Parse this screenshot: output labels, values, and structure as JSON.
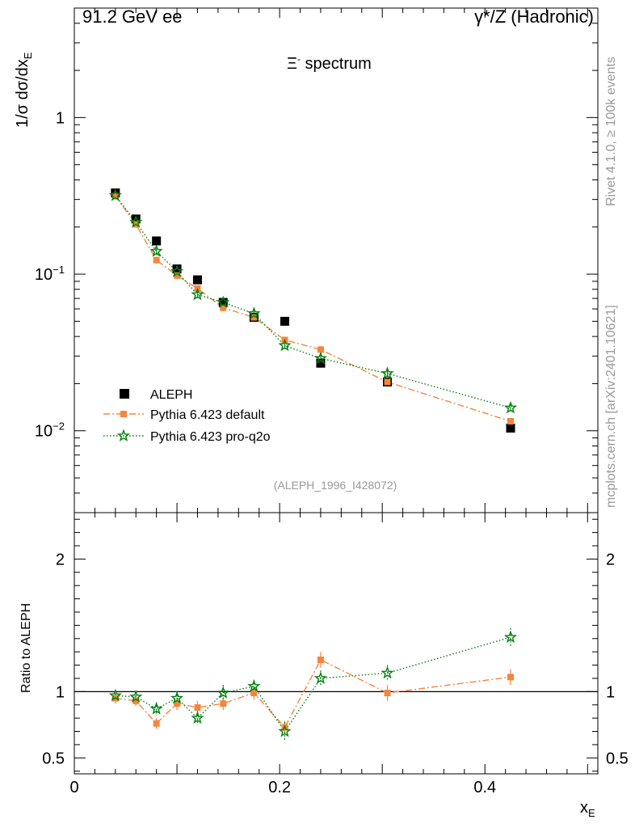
{
  "header": {
    "left": "91.2 GeV ee",
    "right": "γ*/Z (Hadronic)"
  },
  "side_labels": {
    "rivet": "Rivet 4.1.0, ≥ 100k events",
    "mcplots": "mcplots.cern.ch [arXiv:2401.10621]"
  },
  "colors": {
    "data": "#000000",
    "default": "#f5853f",
    "proq2o": "#00800f"
  },
  "chart_data": [
    {
      "type": "scatter",
      "title": "Ξ- spectrum",
      "title_base": "Ξ",
      "title_sup": "-",
      "title_rest": " spectrum",
      "analysis_label": "(ALEPH_1996_I428072)",
      "ylabel": "1/σ  dσ/dx",
      "ylabel_sub": "E",
      "yscale": "log",
      "ylim": [
        0.003,
        5
      ],
      "xlim": [
        0,
        0.51
      ],
      "y_ticks": [
        {
          "value": 1,
          "label": "1"
        },
        {
          "value": 0.1,
          "label": "10",
          "exp": "−1"
        },
        {
          "value": 0.01,
          "label": "10",
          "exp": "−2"
        }
      ],
      "legend_position": "lower-left",
      "x": [
        0.04,
        0.06,
        0.08,
        0.1,
        0.12,
        0.145,
        0.175,
        0.205,
        0.24,
        0.305,
        0.425
      ],
      "series": [
        {
          "name": "ALEPH",
          "key": "data",
          "marker": "square",
          "values": [
            0.33,
            0.225,
            0.163,
            0.108,
            0.092,
            0.066,
            0.053,
            0.05,
            0.027,
            0.0205,
            0.0104
          ]
        },
        {
          "name": "Pythia 6.423 default",
          "key": "default",
          "marker": "small-square",
          "line": "dashdot",
          "values": [
            0.315,
            0.208,
            0.123,
            0.098,
            0.081,
            0.061,
            0.053,
            0.038,
            0.033,
            0.0205,
            0.0115
          ]
        },
        {
          "name": "Pythia 6.423 pro-q2o",
          "key": "proq2o",
          "marker": "star",
          "line": "dotted",
          "values": [
            0.318,
            0.215,
            0.14,
            0.104,
            0.074,
            0.066,
            0.056,
            0.035,
            0.029,
            0.0232,
            0.014
          ]
        }
      ]
    },
    {
      "type": "line",
      "ylabel": "Ratio to ALEPH",
      "xlabel": "x",
      "xlabel_sub": "E",
      "ylim": [
        0.38,
        2.35
      ],
      "xlim": [
        0,
        0.51
      ],
      "y_ticks": [
        {
          "value": 0.5,
          "label": "0.5"
        },
        {
          "value": 1,
          "label": "1"
        },
        {
          "value": 2,
          "label": "2"
        }
      ],
      "x_ticks": [
        {
          "value": 0,
          "label": "0"
        },
        {
          "value": 0.2,
          "label": "0.2"
        },
        {
          "value": 0.4,
          "label": "0.4"
        }
      ],
      "reference": 1,
      "x": [
        0.04,
        0.06,
        0.08,
        0.1,
        0.12,
        0.145,
        0.175,
        0.205,
        0.24,
        0.305,
        0.425
      ],
      "series": [
        {
          "name": "Pythia 6.423 default",
          "key": "default",
          "values": [
            0.95,
            0.93,
            0.76,
            0.91,
            0.88,
            0.91,
            0.99,
            0.73,
            1.24,
            0.99,
            1.11
          ],
          "errors": [
            0.04,
            0.04,
            0.04,
            0.05,
            0.05,
            0.05,
            0.05,
            0.05,
            0.06,
            0.06,
            0.06
          ]
        },
        {
          "name": "Pythia 6.423 pro-q2o",
          "key": "proq2o",
          "values": [
            0.97,
            0.96,
            0.87,
            0.95,
            0.8,
            0.99,
            1.04,
            0.7,
            1.1,
            1.14,
            1.41
          ],
          "errors": [
            0.04,
            0.04,
            0.05,
            0.05,
            0.05,
            0.06,
            0.05,
            0.07,
            0.06,
            0.06,
            0.07
          ]
        }
      ]
    }
  ]
}
